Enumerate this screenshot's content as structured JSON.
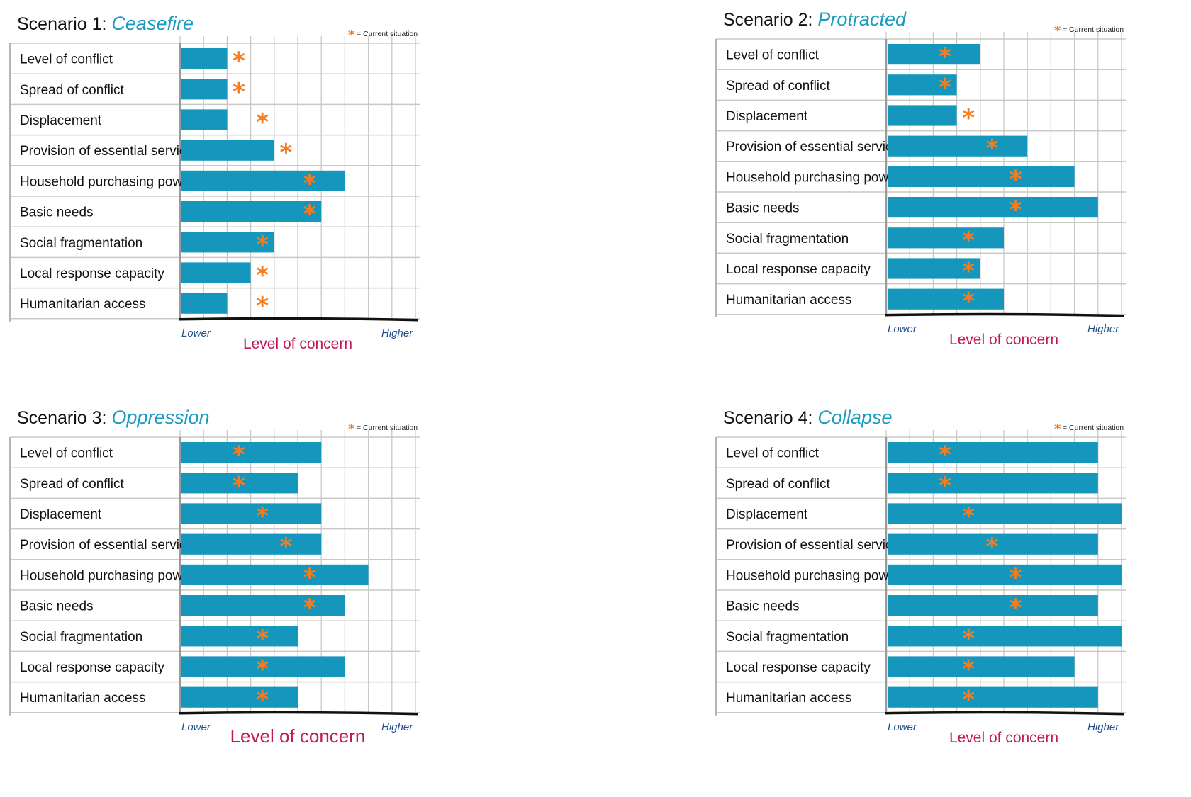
{
  "colors": {
    "bar": "#1597bd",
    "star": "#f57c1f",
    "title_name": "#1a9bc0",
    "axis_label": "#c2185b",
    "lower_higher": "#1f4e8c",
    "grid": "#c8c8c8"
  },
  "icons": {
    "current_marker": "asterisk-icon"
  },
  "chart_data": [
    {
      "type": "bar",
      "orientation": "horizontal",
      "title_prefix": "Scenario 1:",
      "title_name": "Ceasefire",
      "legend": {
        "marker": "*",
        "text": "= Current situation",
        "placement": "top-right"
      },
      "xlabel": "Level of concern",
      "x_low_label": "Lower",
      "x_high_label": "Higher",
      "xlim": [
        0,
        10
      ],
      "grid": true,
      "categories": [
        "Level of conflict",
        "Spread of conflict",
        "Displacement",
        "Provision of essential services",
        "Household purchasing power",
        "Basic needs",
        "Social fragmentation",
        "Local response capacity",
        "Humanitarian access"
      ],
      "values": [
        2,
        2,
        2,
        4,
        7,
        6,
        4,
        3,
        2
      ],
      "current_situation": [
        2.5,
        2.5,
        3.5,
        4.5,
        5.5,
        5.5,
        3.5,
        3.5,
        3.5
      ]
    },
    {
      "type": "bar",
      "orientation": "horizontal",
      "title_prefix": "Scenario 2:",
      "title_name": "Protracted",
      "legend": {
        "marker": "*",
        "text": "= Current situation",
        "placement": "top-right"
      },
      "xlabel": "Level of concern",
      "x_low_label": "Lower",
      "x_high_label": "Higher",
      "xlim": [
        0,
        10
      ],
      "grid": true,
      "categories": [
        "Level of conflict",
        "Spread of conflict",
        "Displacement",
        "Provision of essential services",
        "Household purchasing power",
        "Basic needs",
        "Social fragmentation",
        "Local response capacity",
        "Humanitarian access"
      ],
      "values": [
        4,
        3,
        3,
        6,
        8,
        9,
        5,
        4,
        5
      ],
      "current_situation": [
        2.5,
        2.5,
        3.5,
        4.5,
        5.5,
        5.5,
        3.5,
        3.5,
        3.5
      ]
    },
    {
      "type": "bar",
      "orientation": "horizontal",
      "title_prefix": "Scenario 3:",
      "title_name": "Oppression",
      "legend": {
        "marker": "*",
        "text": "= Current situation",
        "placement": "top-right"
      },
      "xlabel": "Level of concern",
      "x_low_label": "Lower",
      "x_high_label": "Higher",
      "xlim": [
        0,
        10
      ],
      "grid": true,
      "categories": [
        "Level of conflict",
        "Spread of conflict",
        "Displacement",
        "Provision of essential services",
        "Household purchasing power",
        "Basic needs",
        "Social fragmentation",
        "Local response capacity",
        "Humanitarian access"
      ],
      "values": [
        6,
        5,
        6,
        6,
        8,
        7,
        5,
        7,
        5
      ],
      "current_situation": [
        2.5,
        2.5,
        3.5,
        4.5,
        5.5,
        5.5,
        3.5,
        3.5,
        3.5
      ]
    },
    {
      "type": "bar",
      "orientation": "horizontal",
      "title_prefix": "Scenario 4:",
      "title_name": "Collapse",
      "legend": {
        "marker": "*",
        "text": "= Current situation",
        "placement": "top-right"
      },
      "xlabel": "Level of concern",
      "x_low_label": "Lower",
      "x_high_label": "Higher",
      "xlim": [
        0,
        10
      ],
      "grid": true,
      "categories": [
        "Level of conflict",
        "Spread of conflict",
        "Displacement",
        "Provision of essential services",
        "Household purchasing powder",
        "Basic needs",
        "Social fragmentation",
        "Local response capacity",
        "Humanitarian access"
      ],
      "values": [
        9,
        9,
        10,
        9,
        10,
        9,
        10,
        8,
        9
      ],
      "current_situation": [
        2.5,
        2.5,
        3.5,
        4.5,
        5.5,
        5.5,
        3.5,
        3.5,
        3.5
      ]
    }
  ]
}
